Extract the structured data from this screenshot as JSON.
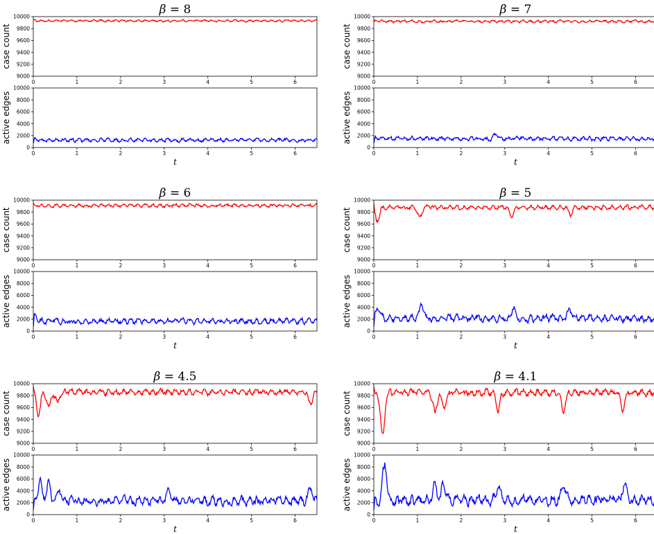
{
  "colors": {
    "case_count": "#ff0000",
    "active_edges": "#0000ff",
    "axes": "#000000"
  },
  "chart_data": [
    {
      "title_symbol": "β",
      "title_eq": " = ",
      "title_value": "8",
      "case_count": {
        "type": "line",
        "ylabel": "case count",
        "ylim": [
          9000,
          10000
        ],
        "yticks": [
          9000,
          9200,
          9400,
          9600,
          9800,
          10000
        ],
        "xlim": [
          0,
          6.5
        ],
        "xticks": [
          0,
          1,
          2,
          3,
          4,
          5,
          6
        ],
        "mean": 9930,
        "amplitude": 25,
        "dips": []
      },
      "active_edges": {
        "type": "line",
        "ylabel": "active edges",
        "xlabel": "t",
        "ylim": [
          0,
          10000
        ],
        "yticks": [
          0,
          2000,
          4000,
          6000,
          8000,
          10000
        ],
        "xlim": [
          0,
          6.5
        ],
        "xticks": [
          0,
          1,
          2,
          3,
          4,
          5,
          6
        ],
        "mean": 1250,
        "amplitude": 450,
        "spikes": []
      }
    },
    {
      "title_symbol": "β",
      "title_eq": " = ",
      "title_value": "7",
      "case_count": {
        "type": "line",
        "ylabel": "case count",
        "ylim": [
          9000,
          10000
        ],
        "yticks": [
          9000,
          9200,
          9400,
          9600,
          9800,
          10000
        ],
        "xlim": [
          0,
          6.5
        ],
        "xticks": [
          0,
          1,
          2,
          3,
          4,
          5,
          6
        ],
        "mean": 9920,
        "amplitude": 30,
        "dips": []
      },
      "active_edges": {
        "type": "line",
        "ylabel": "active edges",
        "xlabel": "t",
        "ylim": [
          0,
          10000
        ],
        "yticks": [
          0,
          2000,
          4000,
          6000,
          8000,
          10000
        ],
        "xlim": [
          0,
          6.5
        ],
        "xticks": [
          0,
          1,
          2,
          3,
          4,
          5,
          6
        ],
        "mean": 1500,
        "amplitude": 500,
        "spikes": [
          [
            2.8,
            2300
          ]
        ]
      }
    },
    {
      "title_symbol": "β",
      "title_eq": " = ",
      "title_value": "6",
      "case_count": {
        "type": "line",
        "ylabel": "case count",
        "ylim": [
          9000,
          10000
        ],
        "yticks": [
          9000,
          9200,
          9400,
          9600,
          9800,
          10000
        ],
        "xlim": [
          0,
          6.5
        ],
        "xticks": [
          0,
          1,
          2,
          3,
          4,
          5,
          6
        ],
        "mean": 9910,
        "amplitude": 40,
        "dips": []
      },
      "active_edges": {
        "type": "line",
        "ylabel": "active edges",
        "xlabel": "t",
        "ylim": [
          0,
          10000
        ],
        "yticks": [
          0,
          2000,
          4000,
          6000,
          8000,
          10000
        ],
        "xlim": [
          0,
          6.5
        ],
        "xticks": [
          0,
          1,
          2,
          3,
          4,
          5,
          6
        ],
        "mean": 1650,
        "amplitude": 650,
        "spikes": [
          [
            0.05,
            2700
          ]
        ]
      }
    },
    {
      "title_symbol": "β",
      "title_eq": " = ",
      "title_value": "5",
      "case_count": {
        "type": "line",
        "ylabel": "case count",
        "ylim": [
          9000,
          10000
        ],
        "yticks": [
          9000,
          9200,
          9400,
          9600,
          9800,
          10000
        ],
        "xlim": [
          0,
          6.5
        ],
        "xticks": [
          0,
          1,
          2,
          3,
          4,
          5,
          6
        ],
        "mean": 9880,
        "amplitude": 55,
        "dips": [
          [
            0.08,
            9650
          ],
          [
            1.05,
            9700
          ],
          [
            3.15,
            9730
          ],
          [
            4.5,
            9760
          ]
        ]
      },
      "active_edges": {
        "type": "line",
        "ylabel": "active edges",
        "xlabel": "t",
        "ylim": [
          0,
          10000
        ],
        "yticks": [
          0,
          2000,
          4000,
          6000,
          8000,
          10000
        ],
        "xlim": [
          0,
          6.5
        ],
        "xticks": [
          0,
          1,
          2,
          3,
          4,
          5,
          6
        ],
        "mean": 2100,
        "amplitude": 900,
        "spikes": [
          [
            0.1,
            4000
          ],
          [
            1.1,
            4200
          ],
          [
            3.2,
            3700
          ],
          [
            4.5,
            3500
          ]
        ]
      }
    },
    {
      "title_symbol": "β",
      "title_eq": " = ",
      "title_value": "4.5",
      "case_count": {
        "type": "line",
        "ylabel": "case count",
        "ylim": [
          9000,
          10000
        ],
        "yticks": [
          9000,
          9200,
          9400,
          9600,
          9800,
          10000
        ],
        "xlim": [
          0,
          6.5
        ],
        "xticks": [
          0,
          1,
          2,
          3,
          4,
          5,
          6
        ],
        "mean": 9860,
        "amplitude": 70,
        "dips": [
          [
            0.12,
            9480
          ],
          [
            0.35,
            9600
          ],
          [
            0.55,
            9700
          ],
          [
            6.35,
            9630
          ]
        ]
      },
      "active_edges": {
        "type": "line",
        "ylabel": "active edges",
        "xlabel": "t",
        "ylim": [
          0,
          10000
        ],
        "yticks": [
          0,
          2000,
          4000,
          6000,
          8000,
          10000
        ],
        "xlim": [
          0,
          6.5
        ],
        "xticks": [
          0,
          1,
          2,
          3,
          4,
          5,
          6
        ],
        "mean": 2300,
        "amplitude": 1100,
        "spikes": [
          [
            0.15,
            5600
          ],
          [
            0.35,
            5100
          ],
          [
            0.6,
            4300
          ],
          [
            3.1,
            4000
          ],
          [
            6.35,
            4500
          ]
        ]
      }
    },
    {
      "title_symbol": "β",
      "title_eq": " = ",
      "title_value": "4.1",
      "case_count": {
        "type": "line",
        "ylabel": "case count",
        "ylim": [
          9000,
          10000
        ],
        "yticks": [
          9000,
          9200,
          9400,
          9600,
          9800,
          10000
        ],
        "xlim": [
          0,
          6.5
        ],
        "xticks": [
          0,
          1,
          2,
          3,
          4,
          5,
          6
        ],
        "mean": 9850,
        "amplitude": 80,
        "dips": [
          [
            0.2,
            9120
          ],
          [
            1.4,
            9530
          ],
          [
            1.6,
            9600
          ],
          [
            2.85,
            9580
          ],
          [
            4.35,
            9530
          ],
          [
            5.7,
            9570
          ]
        ]
      },
      "active_edges": {
        "type": "line",
        "ylabel": "active edges",
        "xlabel": "t",
        "ylim": [
          0,
          10000
        ],
        "yticks": [
          0,
          2000,
          4000,
          6000,
          8000,
          10000
        ],
        "xlim": [
          0,
          6.5
        ],
        "xticks": [
          0,
          1,
          2,
          3,
          4,
          5,
          6
        ],
        "mean": 2400,
        "amplitude": 1200,
        "spikes": [
          [
            0.25,
            8800
          ],
          [
            1.4,
            5200
          ],
          [
            1.6,
            5500
          ],
          [
            2.85,
            5000
          ],
          [
            4.35,
            5400
          ],
          [
            5.75,
            5400
          ]
        ]
      }
    }
  ]
}
